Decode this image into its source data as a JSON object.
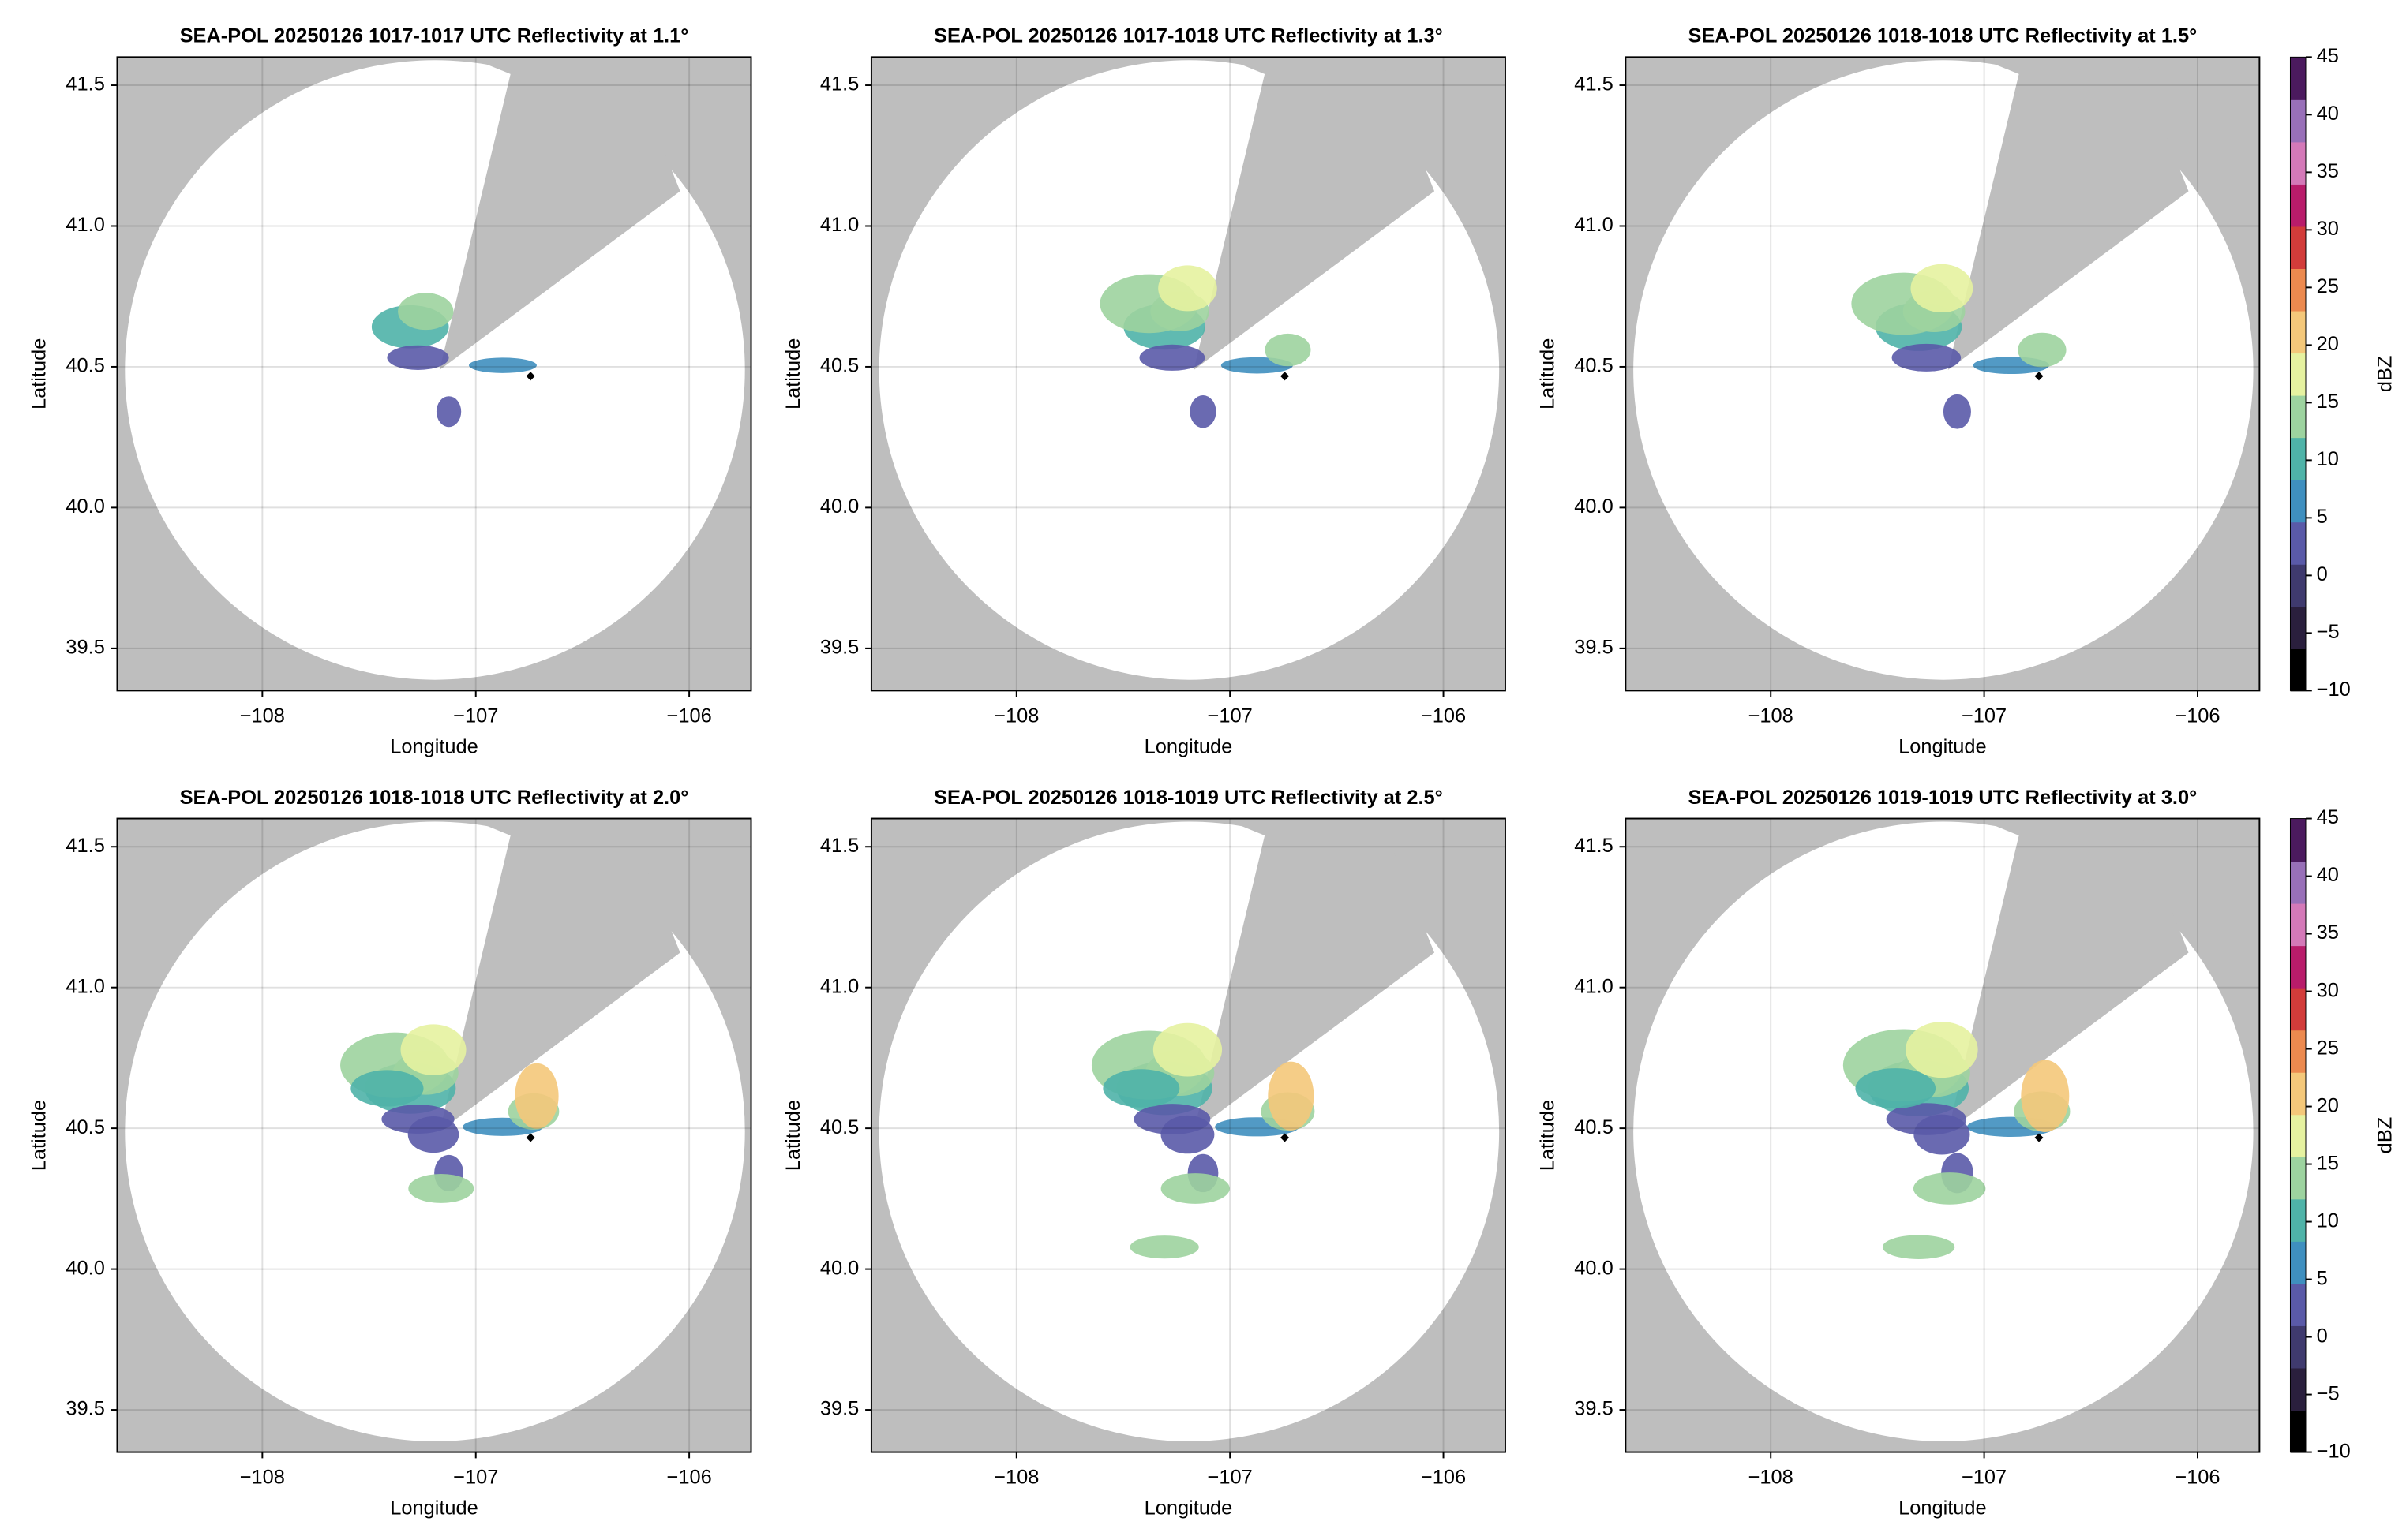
{
  "chart_data": [
    {
      "type": "radar-ppi",
      "title": "SEA-POL 20250126 1017-1017 UTC Reflectivity at 1.1°",
      "xlabel": "Longitude",
      "ylabel": "Latitude",
      "xlim": [
        -108.68,
        -105.71
      ],
      "ylim": [
        39.35,
        41.6
      ],
      "xticks": [
        {
          "value": -108,
          "label": "−108"
        },
        {
          "value": -107,
          "label": "−107"
        },
        {
          "value": -106,
          "label": "−106"
        }
      ],
      "yticks": [
        {
          "value": 39.5,
          "label": "39.5"
        },
        {
          "value": 40,
          "label": "40.0"
        },
        {
          "value": 40.5,
          "label": "40.5"
        },
        {
          "value": 41,
          "label": "41.0"
        },
        {
          "value": 41.5,
          "label": "41.5"
        }
      ],
      "grid": true
    },
    {
      "type": "radar-ppi",
      "title": "SEA-POL 20250126 1017-1018 UTC Reflectivity at 1.3°",
      "xlabel": "Longitude",
      "ylabel": "Latitude",
      "xlim": [
        -108.68,
        -105.71
      ],
      "ylim": [
        39.35,
        41.6
      ],
      "xticks": [
        {
          "value": -108,
          "label": "−108"
        },
        {
          "value": -107,
          "label": "−107"
        },
        {
          "value": -106,
          "label": "−106"
        }
      ],
      "yticks": [
        {
          "value": 39.5,
          "label": "39.5"
        },
        {
          "value": 40,
          "label": "40.0"
        },
        {
          "value": 40.5,
          "label": "40.5"
        },
        {
          "value": 41,
          "label": "41.0"
        },
        {
          "value": 41.5,
          "label": "41.5"
        }
      ],
      "grid": true
    },
    {
      "type": "radar-ppi",
      "title": "SEA-POL 20250126 1018-1018 UTC Reflectivity at 1.5°",
      "xlabel": "Longitude",
      "ylabel": "Latitude",
      "xlim": [
        -108.68,
        -105.71
      ],
      "ylim": [
        39.35,
        41.6
      ],
      "xticks": [
        {
          "value": -108,
          "label": "−108"
        },
        {
          "value": -107,
          "label": "−107"
        },
        {
          "value": -106,
          "label": "−106"
        }
      ],
      "yticks": [
        {
          "value": 39.5,
          "label": "39.5"
        },
        {
          "value": 40,
          "label": "40.0"
        },
        {
          "value": 40.5,
          "label": "40.5"
        },
        {
          "value": 41,
          "label": "41.0"
        },
        {
          "value": 41.5,
          "label": "41.5"
        }
      ],
      "grid": true,
      "colorbar": true
    },
    {
      "type": "radar-ppi",
      "title": "SEA-POL 20250126 1018-1018 UTC Reflectivity at 2.0°",
      "xlabel": "Longitude",
      "ylabel": "Latitude",
      "xlim": [
        -108.68,
        -105.71
      ],
      "ylim": [
        39.35,
        41.6
      ],
      "xticks": [
        {
          "value": -108,
          "label": "−108"
        },
        {
          "value": -107,
          "label": "−107"
        },
        {
          "value": -106,
          "label": "−106"
        }
      ],
      "yticks": [
        {
          "value": 39.5,
          "label": "39.5"
        },
        {
          "value": 40,
          "label": "40.0"
        },
        {
          "value": 40.5,
          "label": "40.5"
        },
        {
          "value": 41,
          "label": "41.0"
        },
        {
          "value": 41.5,
          "label": "41.5"
        }
      ],
      "grid": true
    },
    {
      "type": "radar-ppi",
      "title": "SEA-POL 20250126 1018-1019 UTC Reflectivity at 2.5°",
      "xlabel": "Longitude",
      "ylabel": "Latitude",
      "xlim": [
        -108.68,
        -105.71
      ],
      "ylim": [
        39.35,
        41.6
      ],
      "xticks": [
        {
          "value": -108,
          "label": "−108"
        },
        {
          "value": -107,
          "label": "−107"
        },
        {
          "value": -106,
          "label": "−106"
        }
      ],
      "yticks": [
        {
          "value": 39.5,
          "label": "39.5"
        },
        {
          "value": 40,
          "label": "40.0"
        },
        {
          "value": 40.5,
          "label": "40.5"
        },
        {
          "value": 41,
          "label": "41.0"
        },
        {
          "value": 41.5,
          "label": "41.5"
        }
      ],
      "grid": true
    },
    {
      "type": "radar-ppi",
      "title": "SEA-POL 20250126 1019-1019 UTC Reflectivity at 3.0°",
      "xlabel": "Longitude",
      "ylabel": "Latitude",
      "xlim": [
        -108.68,
        -105.71
      ],
      "ylim": [
        39.35,
        41.6
      ],
      "xticks": [
        {
          "value": -108,
          "label": "−108"
        },
        {
          "value": -107,
          "label": "−107"
        },
        {
          "value": -106,
          "label": "−106"
        }
      ],
      "yticks": [
        {
          "value": 39.5,
          "label": "39.5"
        },
        {
          "value": 40,
          "label": "40.0"
        },
        {
          "value": 40.5,
          "label": "40.5"
        },
        {
          "value": 41,
          "label": "41.0"
        },
        {
          "value": 41.5,
          "label": "41.5"
        }
      ],
      "grid": true,
      "colorbar": true
    }
  ],
  "colorbar": {
    "label": "dBZ",
    "lim": [
      -10,
      45
    ],
    "ticks": [
      {
        "value": -10,
        "label": "−10"
      },
      {
        "value": -5,
        "label": "−5"
      },
      0,
      5,
      10,
      15,
      20,
      25,
      30,
      35,
      40,
      45
    ],
    "colors": [
      "#000000",
      "#2a1f3d",
      "#3f3a6e",
      "#5a5aa8",
      "#3f8fbf",
      "#4fb3a8",
      "#9dd39f",
      "#e6f2a0",
      "#f4c87a",
      "#ec8a4f",
      "#d23c3a",
      "#b81c6a",
      "#d479b8",
      "#9870b8",
      "#4b1a5e"
    ]
  }
}
